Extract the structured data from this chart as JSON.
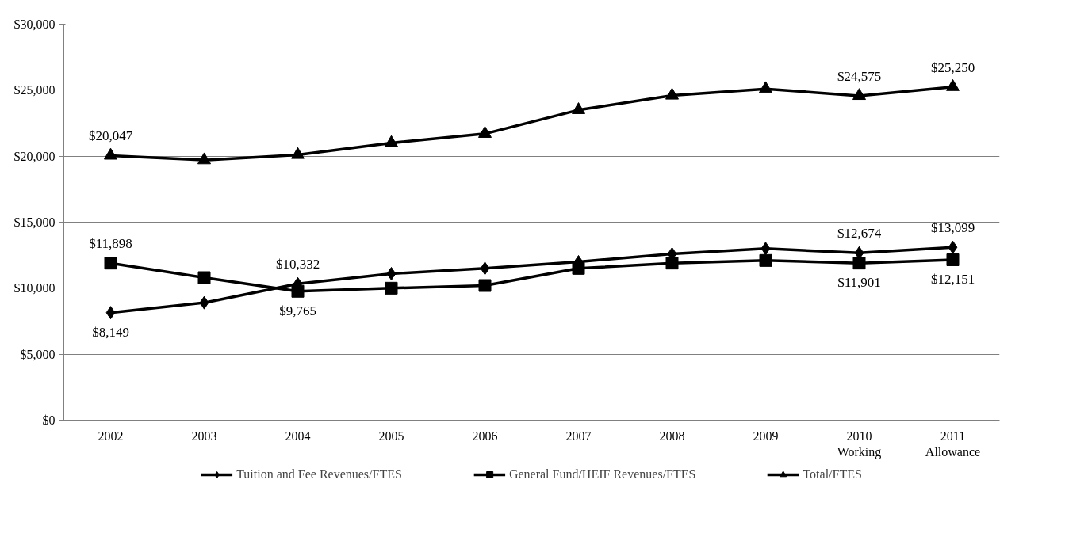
{
  "chart_data": {
    "type": "line",
    "categories": [
      "2002",
      "2003",
      "2004",
      "2005",
      "2006",
      "2007",
      "2008",
      "2009",
      "2010\nWorking",
      "2011\nAllowance"
    ],
    "ylim": [
      0,
      30000
    ],
    "yticks": [
      {
        "value": 0,
        "label": "$0"
      },
      {
        "value": 5000,
        "label": "$5,000"
      },
      {
        "value": 10000,
        "label": "$10,000"
      },
      {
        "value": 15000,
        "label": "$15,000"
      },
      {
        "value": 20000,
        "label": "$20,000"
      },
      {
        "value": 25000,
        "label": "$25,000"
      },
      {
        "value": 30000,
        "label": "$30,000"
      }
    ],
    "grid": "y",
    "legend": "bottom",
    "line_style": "solid",
    "series": [
      {
        "name": "Tuition and Fee Revenues/FTES",
        "color": "#000000",
        "marker": "diamond",
        "values": [
          8149,
          8900,
          10332,
          11100,
          11500,
          12000,
          12600,
          13000,
          12674,
          13099
        ],
        "value_labels": [
          "$8,149",
          null,
          "$10,332",
          null,
          null,
          null,
          null,
          null,
          "$12,674",
          "$13,099"
        ]
      },
      {
        "name": "General Fund/HEIF Revenues/FTES",
        "color": "#000000",
        "marker": "square",
        "values": [
          11898,
          10800,
          9765,
          10000,
          10200,
          11500,
          11900,
          12100,
          11901,
          12151
        ],
        "value_labels": [
          "$11,898",
          null,
          "$9,765",
          null,
          null,
          null,
          null,
          null,
          "$11,901",
          "$12,151"
        ]
      },
      {
        "name": "Total/FTES",
        "color": "#000000",
        "marker": "triangle",
        "values": [
          20047,
          19700,
          20100,
          21000,
          21700,
          23500,
          24600,
          25100,
          24575,
          25250
        ],
        "value_labels": [
          "$20,047",
          null,
          null,
          null,
          null,
          null,
          null,
          null,
          "$24,575",
          "$25,250"
        ]
      }
    ]
  }
}
